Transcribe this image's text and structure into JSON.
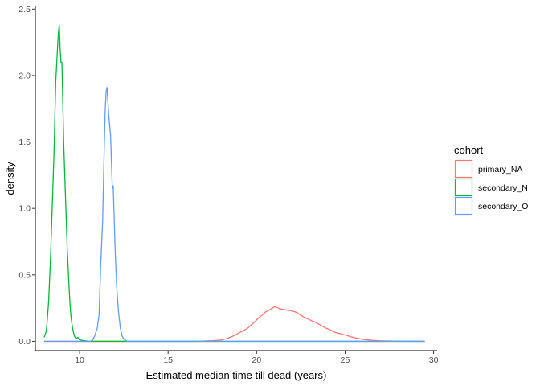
{
  "chart_data": {
    "type": "line",
    "title": "",
    "xlabel": "Estimated median time till dead (years)",
    "ylabel": "density",
    "xlim": [
      7.5,
      30.2
    ],
    "ylim": [
      -0.07,
      2.52
    ],
    "x_ticks": [
      10,
      15,
      20,
      25,
      30
    ],
    "y_ticks": [
      0.0,
      0.5,
      1.0,
      1.5,
      2.0,
      2.5
    ],
    "x_tick_labels": [
      "10",
      "15",
      "20",
      "25",
      "30"
    ],
    "y_tick_labels": [
      "0.0",
      "0.5",
      "1.0",
      "1.5",
      "2.0",
      "2.5"
    ],
    "grid": false,
    "legend": {
      "title": "cohort",
      "placement": "right",
      "entries": [
        "primary_NA",
        "secondary_N",
        "secondary_O"
      ]
    },
    "series": [
      {
        "name": "primary_NA",
        "color": "#F8766D",
        "points": [
          [
            8.0,
            0.0
          ],
          [
            16.5,
            0.0
          ],
          [
            17.0,
            0.002
          ],
          [
            17.5,
            0.005
          ],
          [
            18.0,
            0.01
          ],
          [
            18.3,
            0.02
          ],
          [
            18.6,
            0.035
          ],
          [
            18.9,
            0.055
          ],
          [
            19.1,
            0.07
          ],
          [
            19.3,
            0.085
          ],
          [
            19.5,
            0.1
          ],
          [
            19.6,
            0.11
          ],
          [
            19.8,
            0.135
          ],
          [
            20.0,
            0.16
          ],
          [
            20.1,
            0.175
          ],
          [
            20.3,
            0.195
          ],
          [
            20.5,
            0.22
          ],
          [
            20.7,
            0.235
          ],
          [
            20.9,
            0.25
          ],
          [
            21.0,
            0.26
          ],
          [
            21.1,
            0.258
          ],
          [
            21.3,
            0.245
          ],
          [
            21.5,
            0.24
          ],
          [
            21.7,
            0.235
          ],
          [
            21.9,
            0.232
          ],
          [
            22.1,
            0.225
          ],
          [
            22.3,
            0.215
          ],
          [
            22.5,
            0.195
          ],
          [
            22.7,
            0.18
          ],
          [
            22.9,
            0.168
          ],
          [
            23.1,
            0.155
          ],
          [
            23.3,
            0.145
          ],
          [
            23.5,
            0.13
          ],
          [
            23.7,
            0.115
          ],
          [
            23.9,
            0.1
          ],
          [
            24.1,
            0.09
          ],
          [
            24.4,
            0.07
          ],
          [
            24.7,
            0.058
          ],
          [
            25.0,
            0.048
          ],
          [
            25.3,
            0.035
          ],
          [
            25.6,
            0.025
          ],
          [
            26.0,
            0.015
          ],
          [
            26.5,
            0.008
          ],
          [
            27.0,
            0.004
          ],
          [
            28.0,
            0.001
          ],
          [
            29.5,
            0.0
          ]
        ]
      },
      {
        "name": "secondary_N",
        "color": "#00BA38",
        "points": [
          [
            8.0,
            0.03
          ],
          [
            8.1,
            0.07
          ],
          [
            8.15,
            0.12
          ],
          [
            8.25,
            0.3
          ],
          [
            8.35,
            0.6
          ],
          [
            8.45,
            1.0
          ],
          [
            8.55,
            1.4
          ],
          [
            8.65,
            1.95
          ],
          [
            8.75,
            2.2
          ],
          [
            8.8,
            2.32
          ],
          [
            8.85,
            2.38
          ],
          [
            8.9,
            2.2
          ],
          [
            8.95,
            2.1
          ],
          [
            9.0,
            2.1
          ],
          [
            9.05,
            1.8
          ],
          [
            9.1,
            1.5
          ],
          [
            9.2,
            1.1
          ],
          [
            9.3,
            0.7
          ],
          [
            9.4,
            0.42
          ],
          [
            9.45,
            0.3
          ],
          [
            9.5,
            0.2
          ],
          [
            9.6,
            0.1
          ],
          [
            9.7,
            0.04
          ],
          [
            9.8,
            0.02
          ],
          [
            9.9,
            0.03
          ],
          [
            10.0,
            0.01
          ],
          [
            10.5,
            0.0
          ],
          [
            29.5,
            0.0
          ]
        ]
      },
      {
        "name": "secondary_O",
        "color": "#619CFF",
        "points": [
          [
            8.0,
            0.0
          ],
          [
            10.6,
            0.0
          ],
          [
            10.75,
            0.01
          ],
          [
            10.85,
            0.04
          ],
          [
            10.95,
            0.08
          ],
          [
            11.0,
            0.1
          ],
          [
            11.1,
            0.2
          ],
          [
            11.15,
            0.4
          ],
          [
            11.2,
            0.6
          ],
          [
            11.3,
            0.9
          ],
          [
            11.35,
            1.2
          ],
          [
            11.4,
            1.5
          ],
          [
            11.45,
            1.75
          ],
          [
            11.5,
            1.88
          ],
          [
            11.55,
            1.91
          ],
          [
            11.6,
            1.8
          ],
          [
            11.65,
            1.7
          ],
          [
            11.7,
            1.62
          ],
          [
            11.75,
            1.55
          ],
          [
            11.8,
            1.35
          ],
          [
            11.85,
            1.15
          ],
          [
            11.9,
            1.17
          ],
          [
            11.95,
            0.95
          ],
          [
            12.0,
            0.72
          ],
          [
            12.05,
            0.55
          ],
          [
            12.1,
            0.4
          ],
          [
            12.2,
            0.22
          ],
          [
            12.3,
            0.1
          ],
          [
            12.4,
            0.04
          ],
          [
            12.5,
            0.015
          ],
          [
            12.7,
            0.0
          ],
          [
            29.5,
            0.0
          ]
        ]
      }
    ]
  }
}
